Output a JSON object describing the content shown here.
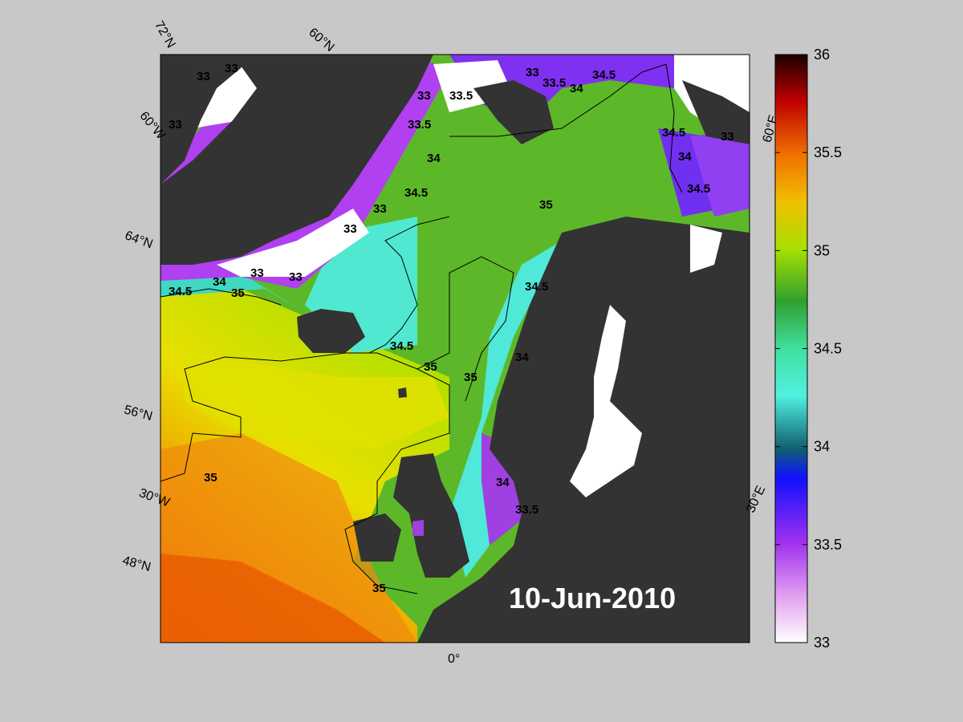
{
  "map": {
    "date": "10-Jun-2010",
    "latitude_labels": [
      "72°N",
      "60°N",
      "64°N",
      "56°N",
      "48°N"
    ],
    "longitude_labels": [
      "60°W",
      "30°W",
      "0°",
      "30°E",
      "60°E"
    ],
    "contour_labels": [
      "33",
      "33.5",
      "34",
      "34.5",
      "35"
    ]
  },
  "colorbar": {
    "min": 33,
    "max": 36,
    "ticks": [
      "36",
      "35.5",
      "35",
      "34.5",
      "34",
      "33.5",
      "33"
    ],
    "colors": {
      "36": "#1a0000",
      "35.75": "#c00000",
      "35.5": "#f07000",
      "35.25": "#f0c000",
      "35": "#a8e000",
      "34.75": "#30a030",
      "34.5": "#40e0a0",
      "34.25": "#50f0e0",
      "34": "#106070",
      "33.75": "#1010ff",
      "33.5": "#a030f0",
      "33.25": "#e0a0f0",
      "33": "#ffffff"
    }
  },
  "colors": {
    "background": "#c8c8c8",
    "land": "#333333",
    "ice": "#ffffff",
    "atlantic_warm": "#f08000",
    "atlantic_mid": "#e8e000",
    "nordic_sea": "#50b030",
    "coastal": "#40e0d0",
    "fresh": "#a040e0"
  }
}
